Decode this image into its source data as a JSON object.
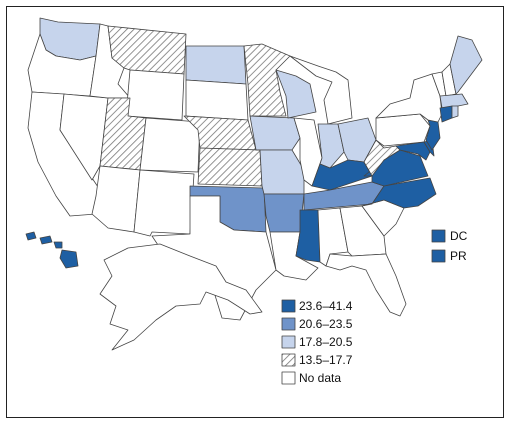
{
  "colors": {
    "c1": "#1e5fa3",
    "c2": "#6f93c9",
    "c3": "#c6d4ec",
    "c4": "hatch",
    "none": "#ffffff"
  },
  "territories": [
    {
      "code": "DC",
      "cls": "c1"
    },
    {
      "code": "PR",
      "cls": "c1"
    }
  ],
  "legend": [
    {
      "cls": "c1",
      "label": "23.6–41.4"
    },
    {
      "cls": "c2",
      "label": "20.6–23.5"
    },
    {
      "cls": "c3",
      "label": "17.8–20.5"
    },
    {
      "cls": "c4",
      "label": "13.5–17.7"
    },
    {
      "cls": "none",
      "label": "No data"
    }
  ]
}
